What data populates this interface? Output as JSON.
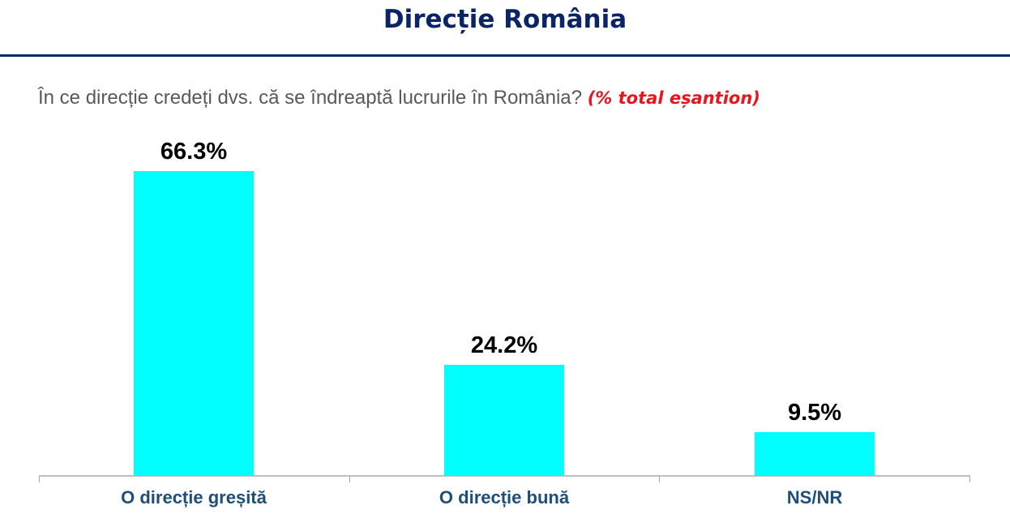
{
  "header": {
    "title": "Direcție România"
  },
  "question": {
    "text": "În ce direcție credeți dvs. că se îndreaptă lucrurile în România?",
    "note": "(% total eșantion)"
  },
  "colors": {
    "title": "#0b2466",
    "rule": "#0b2a66",
    "bar": "#00ffff",
    "category_label": "#1f4e79",
    "note": "#e8151c",
    "question": "#595959"
  },
  "chart_data": {
    "type": "bar",
    "title": "Direcție România",
    "subtitle": "În ce direcție credeți dvs. că se îndreaptă lucrurile în România? (% total eșantion)",
    "categories": [
      "O direcție greșită",
      "O direcție bună",
      "NS/NR"
    ],
    "values": [
      66.3,
      24.2,
      9.5
    ],
    "value_labels": [
      "66.3%",
      "24.2%",
      "9.5%"
    ],
    "xlabel": "",
    "ylabel": "",
    "ylim": [
      0,
      77
    ],
    "grid": false,
    "legend": "none",
    "y_axis_visible": false
  }
}
